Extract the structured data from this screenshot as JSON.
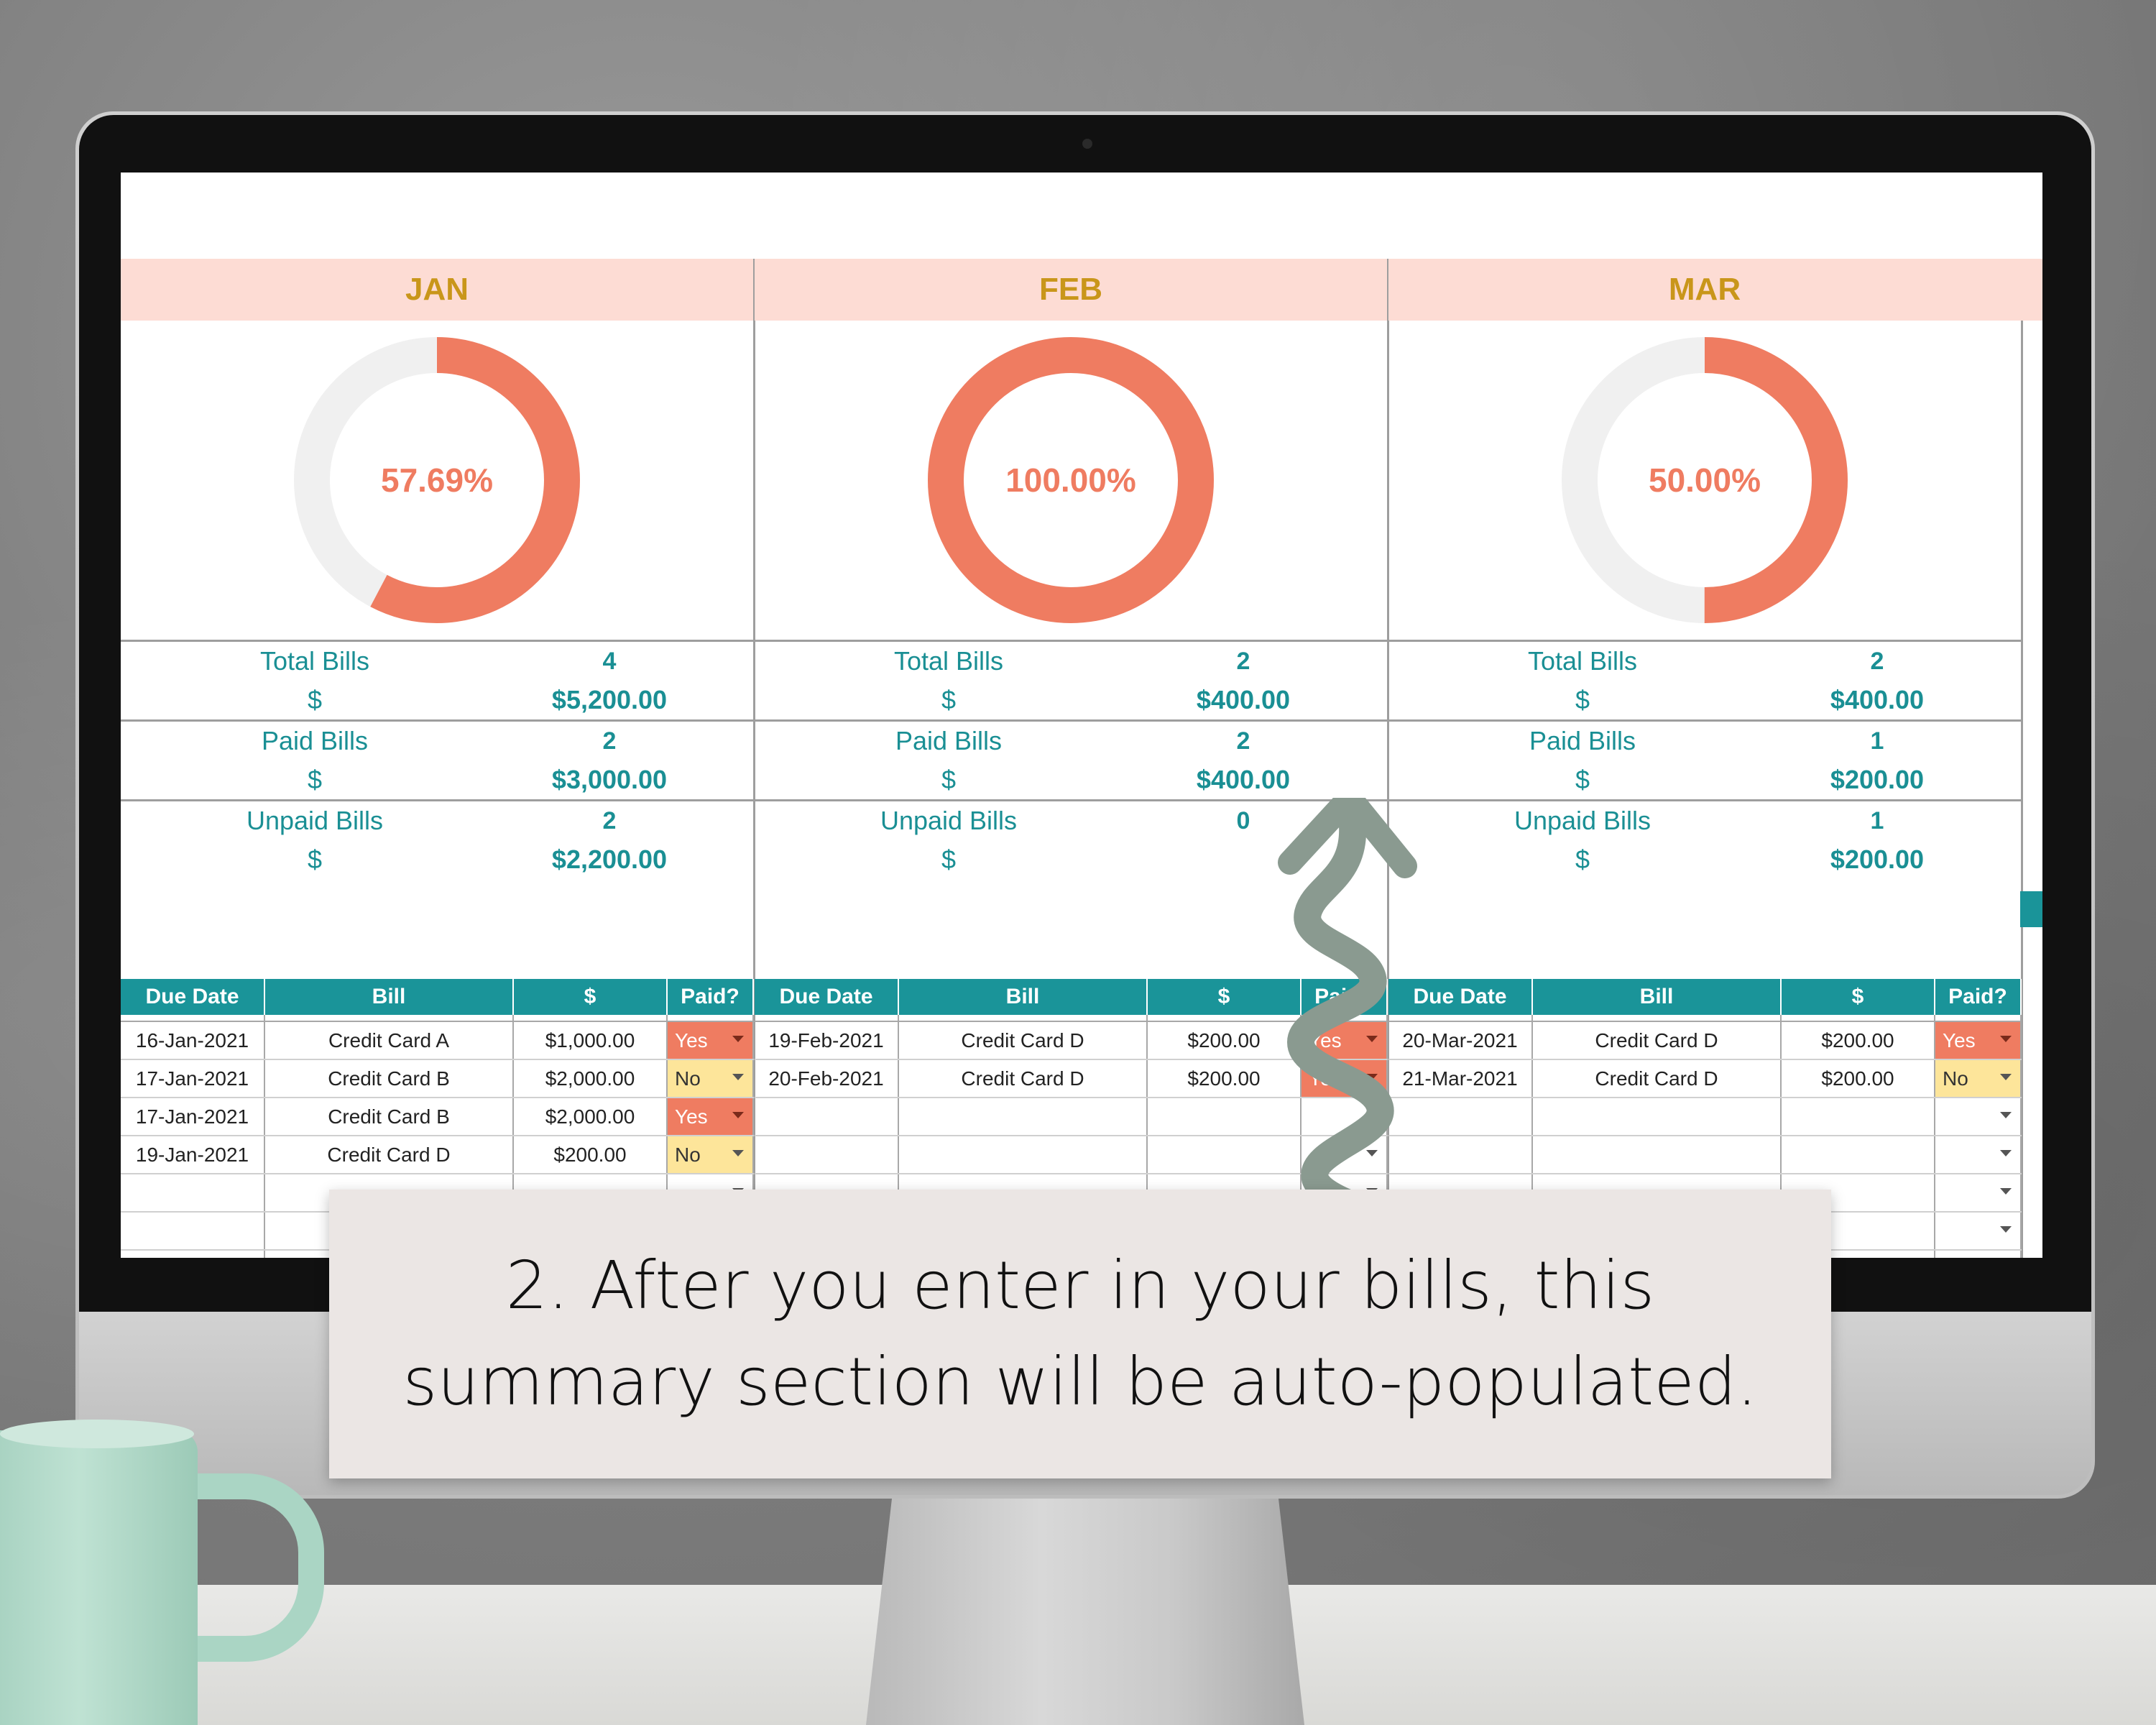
{
  "months": [
    {
      "name": "JAN",
      "pct_label": "57.69%",
      "pct_value": 0.5769,
      "stats": [
        {
          "label": "Total Bills",
          "count": "4",
          "currency": "$",
          "amount": "$5,200.00"
        },
        {
          "label": "Paid Bills",
          "count": "2",
          "currency": "$",
          "amount": "$3,000.00"
        },
        {
          "label": "Unpaid Bills",
          "count": "2",
          "currency": "$",
          "amount": "$2,200.00"
        }
      ],
      "rows": [
        {
          "date": "16-Jan-2021",
          "bill": "Credit Card A",
          "amount": "$1,000.00",
          "paid": "Yes"
        },
        {
          "date": "17-Jan-2021",
          "bill": "Credit Card B",
          "amount": "$2,000.00",
          "paid": "No"
        },
        {
          "date": "17-Jan-2021",
          "bill": "Credit Card B",
          "amount": "$2,000.00",
          "paid": "Yes"
        },
        {
          "date": "19-Jan-2021",
          "bill": "Credit Card D",
          "amount": "$200.00",
          "paid": "No"
        }
      ]
    },
    {
      "name": "FEB",
      "pct_label": "100.00%",
      "pct_value": 1.0,
      "stats": [
        {
          "label": "Total Bills",
          "count": "2",
          "currency": "$",
          "amount": "$400.00"
        },
        {
          "label": "Paid Bills",
          "count": "2",
          "currency": "$",
          "amount": "$400.00"
        },
        {
          "label": "Unpaid Bills",
          "count": "0",
          "currency": "$",
          "amount": ""
        }
      ],
      "rows": [
        {
          "date": "19-Feb-2021",
          "bill": "Credit Card D",
          "amount": "$200.00",
          "paid": "Yes"
        },
        {
          "date": "20-Feb-2021",
          "bill": "Credit Card D",
          "amount": "$200.00",
          "paid": "Yes"
        }
      ]
    },
    {
      "name": "MAR",
      "pct_label": "50.00%",
      "pct_value": 0.5,
      "stats": [
        {
          "label": "Total Bills",
          "count": "2",
          "currency": "$",
          "amount": "$400.00"
        },
        {
          "label": "Paid Bills",
          "count": "1",
          "currency": "$",
          "amount": "$200.00"
        },
        {
          "label": "Unpaid Bills",
          "count": "1",
          "currency": "$",
          "amount": "$200.00"
        }
      ],
      "rows": [
        {
          "date": "20-Mar-2021",
          "bill": "Credit Card D",
          "amount": "$200.00",
          "paid": "Yes"
        },
        {
          "date": "21-Mar-2021",
          "bill": "Credit Card D",
          "amount": "$200.00",
          "paid": "No"
        }
      ]
    }
  ],
  "table_headers": {
    "date": "Due Date",
    "bill": "Bill",
    "amount": "$",
    "paid": "Paid?"
  },
  "callout": {
    "text": "2. After you enter in your bills, this summary section will be auto-populated."
  },
  "colors": {
    "accent_donut": "#ef7c61",
    "donut_track": "#f0f0f0",
    "header_bg": "#fddcd4",
    "header_text": "#c9961a",
    "teal": "#1a9499",
    "yes_bg": "#ef7c61",
    "no_bg": "#fde59a",
    "arrow": "#8a9a90"
  },
  "icons": {
    "dropdown": "chevron-down-icon",
    "arrow": "curly-arrow-icon",
    "mug": "mug-icon"
  }
}
